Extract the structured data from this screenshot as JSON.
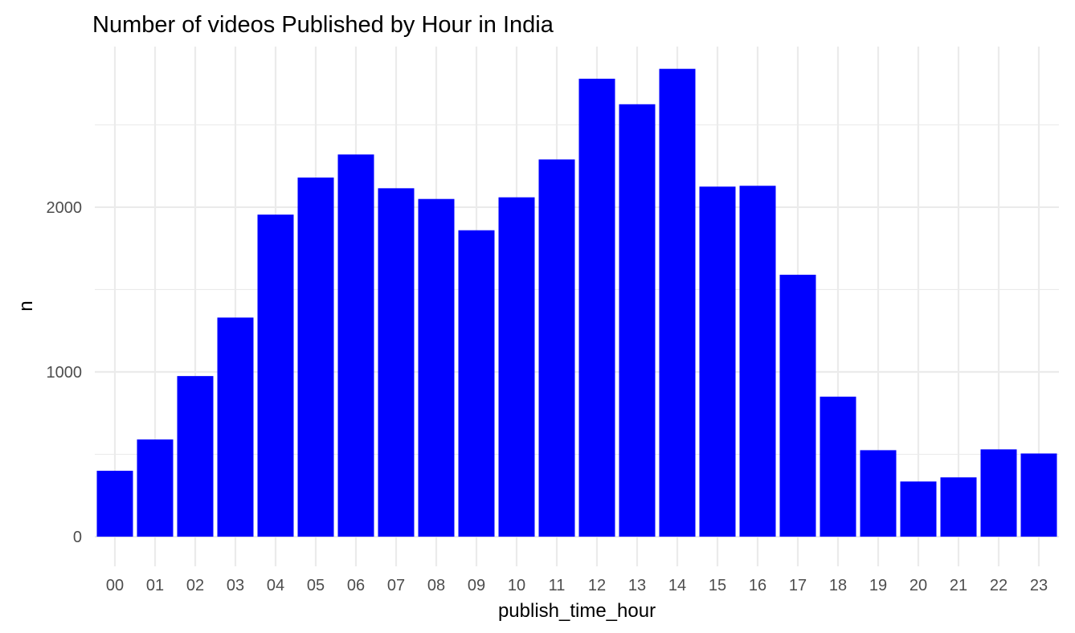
{
  "chart_data": {
    "type": "bar",
    "title": "Number of videos Published by Hour in India",
    "xlabel": "publish_time_hour",
    "ylabel": "n",
    "categories": [
      "00",
      "01",
      "02",
      "03",
      "04",
      "05",
      "06",
      "07",
      "08",
      "09",
      "10",
      "11",
      "12",
      "13",
      "14",
      "15",
      "16",
      "17",
      "18",
      "19",
      "20",
      "21",
      "22",
      "23"
    ],
    "values": [
      400,
      590,
      975,
      1330,
      1955,
      2180,
      2320,
      2115,
      2050,
      1860,
      2060,
      2290,
      2780,
      2625,
      2840,
      2125,
      2130,
      1590,
      850,
      525,
      335,
      360,
      530,
      505
    ],
    "ylim": [
      -180,
      2975
    ],
    "y_ticks": [
      0,
      1000,
      2000
    ],
    "y_tick_labels": [
      "0",
      "1000",
      "2000"
    ],
    "y_minor_ticks": [
      500,
      1500,
      2500
    ],
    "bar_color": "#0000ff",
    "grid": true,
    "legend": "none"
  }
}
